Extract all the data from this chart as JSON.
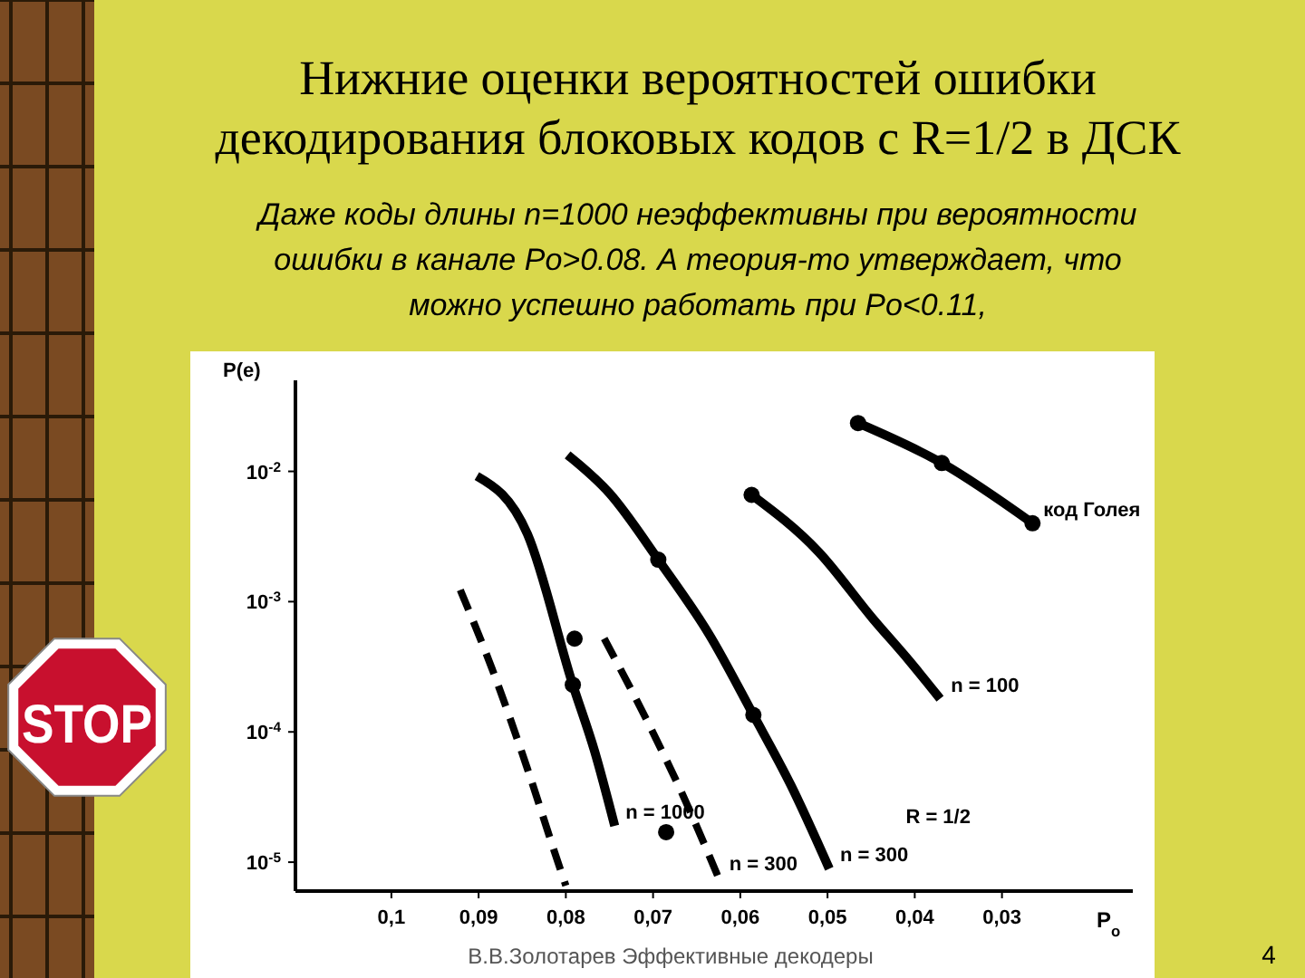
{
  "chart_data": {
    "type": "line",
    "title": "Нижние оценки вероятностей ошибки декодирования блоковых кодов с R=1/2 в ДСК",
    "subtitle": "Даже коды длины  n=1000  неэффективны при вероятности ошибки в канале  Po>0.08.  А теория-то утверждает, что  можно успешно работать при  Po<0.11,",
    "xlabel": "P$_{o}$",
    "ylabel": "P(e)",
    "log": "y",
    "grid": false,
    "xlim": [
      0.111,
      0.015
    ],
    "xticks": [
      {
        "value": 0.1,
        "label": "0,1"
      },
      {
        "value": 0.09,
        "label": "0,09"
      },
      {
        "value": 0.08,
        "label": "0,08"
      },
      {
        "value": 0.07,
        "label": "0,07"
      },
      {
        "value": 0.06,
        "label": "0,06"
      },
      {
        "value": 0.05,
        "label": "0,05"
      },
      {
        "value": 0.04,
        "label": "0,04"
      },
      {
        "value": 0.03,
        "label": "0,03"
      }
    ],
    "ylim": [
      6e-06,
      0.05
    ],
    "yticks": [
      {
        "value": 0.01,
        "label": "10$^{-2}$"
      },
      {
        "value": 0.001,
        "label": "10$^{-3}$"
      },
      {
        "value": 0.0001,
        "label": "10$^{-4}$"
      },
      {
        "value": 1e-05,
        "label": "10$^{-5}$"
      }
    ],
    "series": [
      {
        "name": "код Голея",
        "color": "#000000",
        "x": [
          0.0465,
          0.0369,
          0.0265
        ],
        "values": [
          0.0235,
          0.0116,
          0.004
        ]
      },
      {
        "name": "n = 100",
        "color": "#000000",
        "x": [
          0.0587,
          0.051,
          0.0448,
          0.0406,
          0.0371
        ],
        "values": [
          0.0066,
          0.0024,
          0.00074,
          0.00035,
          0.00018
        ]
      },
      {
        "name": "n = 300",
        "color": "#000000",
        "x": [
          0.0798,
          0.075,
          0.0694,
          0.0635,
          0.0585,
          0.0542,
          0.0498
        ],
        "values": [
          0.0134,
          0.0068,
          0.0021,
          0.00055,
          0.000135,
          3.9e-05,
          8.9e-06
        ]
      },
      {
        "name": "n = 1000",
        "color": "#000000",
        "x": [
          0.0902,
          0.0844,
          0.0792,
          0.0767,
          0.0744
        ],
        "values": [
          0.0092,
          0.0033,
          0.00023,
          7.1e-05,
          1.9e-05
        ]
      },
      {
        "color": "#000000",
        "line_style": "dashed",
        "x": [
          0.0921,
          0.0885,
          0.0844,
          0.0813,
          0.08
        ],
        "values": [
          0.00123,
          0.00031,
          5.2e-05,
          1.2e-05,
          6.6e-06
        ]
      },
      {
        "name": "n = 300",
        "color": "#000000",
        "line_style": "dashed",
        "x": [
          0.0756,
          0.0708,
          0.0667,
          0.0625
        ],
        "values": [
          0.00052,
          0.000126,
          3.4e-05,
          7.6e-06
        ]
      },
      {
        "type": "scatter",
        "marker": "circle",
        "color": "#000000",
        "x": [
          0.0465,
          0.0369,
          0.0265,
          0.0587,
          0.0694,
          0.0585,
          0.0792,
          0.079,
          0.0685
        ],
        "values": [
          0.0235,
          0.0116,
          0.004,
          0.0066,
          0.0021,
          0.000135,
          0.00023,
          0.00052,
          1.7e-05
        ]
      }
    ],
    "annotations": [
      "R = 1/2",
      "В.В.Золотарев Эффективные декодеры",
      "4",
      "STOP"
    ]
  }
}
